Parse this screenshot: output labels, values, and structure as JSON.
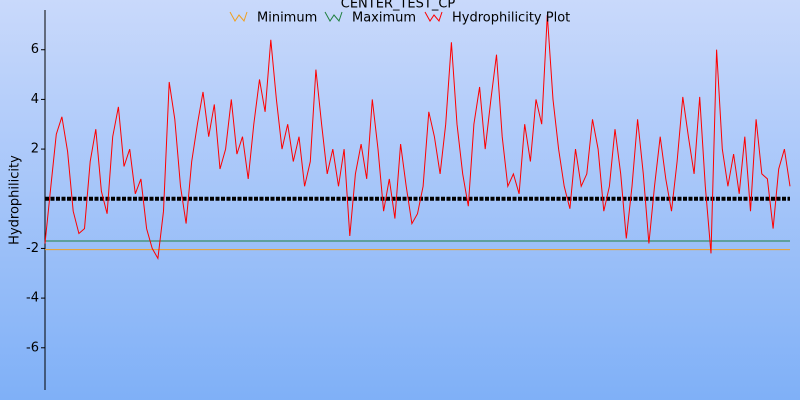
{
  "chart_data": {
    "type": "line",
    "title": "CENTER_TEST_CP",
    "y_label": "Hydrophilicity",
    "ylim": [
      -7.7,
      7.6
    ],
    "yticks": [
      -6,
      -4,
      -2,
      2,
      4,
      6
    ],
    "series": [
      {
        "name": "Minimum",
        "color": "#f0a020",
        "value": -2.05
      },
      {
        "name": "Maximum",
        "color": "#208040",
        "value": -1.7
      },
      {
        "name": "Hydrophilicity Plot",
        "color": "#ff0000",
        "values": [
          -1.8,
          0.4,
          2.6,
          3.3,
          1.9,
          -0.5,
          -1.4,
          -1.2,
          1.5,
          2.8,
          0.3,
          -0.6,
          2.5,
          3.7,
          1.3,
          2.0,
          0.2,
          0.8,
          -1.2,
          -2.0,
          -2.4,
          -0.5,
          4.7,
          3.2,
          0.5,
          -1.0,
          1.5,
          3.0,
          4.3,
          2.5,
          3.8,
          1.2,
          2.0,
          4.0,
          1.8,
          2.5,
          0.8,
          3.0,
          4.8,
          3.5,
          6.4,
          4.0,
          2.0,
          3.0,
          1.5,
          2.5,
          0.5,
          1.5,
          5.2,
          3.0,
          1.0,
          2.0,
          0.5,
          2.0,
          -1.5,
          1.0,
          2.2,
          0.8,
          4.0,
          2.0,
          -0.5,
          0.8,
          -0.8,
          2.2,
          0.5,
          -1.0,
          -0.6,
          0.5,
          3.5,
          2.5,
          1.0,
          3.0,
          6.3,
          3.0,
          1.0,
          -0.3,
          3.0,
          4.5,
          2.0,
          4.0,
          5.8,
          2.5,
          0.5,
          1.0,
          0.2,
          3.0,
          1.5,
          4.0,
          3.0,
          7.4,
          4.0,
          2.0,
          0.5,
          -0.4,
          2.0,
          0.5,
          1.0,
          3.2,
          2.0,
          -0.5,
          0.5,
          2.8,
          1.0,
          -1.6,
          0.5,
          3.2,
          1.0,
          -1.8,
          0.5,
          2.5,
          0.8,
          -0.5,
          1.5,
          4.1,
          2.5,
          1.0,
          4.1,
          0.5,
          -2.2,
          6.0,
          2.0,
          0.5,
          1.8,
          0.2,
          2.5,
          -0.5,
          3.2,
          1.0,
          0.8,
          -1.2,
          1.2,
          2.0,
          0.5
        ]
      }
    ]
  }
}
